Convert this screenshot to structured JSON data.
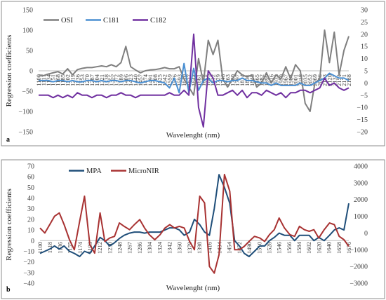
{
  "chart_data": [
    {
      "type": "line",
      "panel_label": "a",
      "xlabel": "Wavelenght (nm)",
      "ylabel": "Regression coefficients",
      "ylim_left": [
        -150,
        150
      ],
      "ylim_right": [
        -20,
        30
      ],
      "yticks_left": [
        "150",
        "100",
        "50",
        "0",
        "−50",
        "−100",
        "−150"
      ],
      "yticks_right": [
        "30",
        "25",
        "20",
        "15",
        "10",
        "5",
        "0",
        "−5",
        "−10",
        "−15",
        "−20"
      ],
      "xticks": [
        "1100",
        "1117",
        "1134",
        "1151",
        "1168",
        "1185",
        "1202",
        "1219",
        "1236",
        "1253",
        "1270",
        "1287",
        "1304",
        "1321",
        "1338",
        "1355",
        "1372",
        "1389",
        "1406",
        "1423",
        "1440",
        "1457",
        "1474",
        "1491",
        "1508",
        "1525",
        "1542",
        "1559",
        "1576",
        "1593",
        "1610",
        "1627",
        "1644",
        "1661",
        "1678",
        "1695",
        "1712",
        "1729",
        "1746",
        "1763",
        "1780",
        "1797",
        "1814",
        "1831",
        "1848",
        "1865",
        "1882",
        "1899",
        "1916",
        "1933",
        "1950",
        "1967",
        "1984",
        "2001",
        "2018",
        "2035",
        "2052",
        "2069",
        "2086",
        "2103",
        "2120",
        "2137",
        "2154",
        "2171",
        "2188"
      ],
      "legend_position": "top-left",
      "grid": false,
      "x": [
        1100,
        1117,
        1134,
        1151,
        1168,
        1185,
        1202,
        1219,
        1236,
        1253,
        1270,
        1287,
        1304,
        1321,
        1338,
        1355,
        1372,
        1389,
        1406,
        1423,
        1440,
        1457,
        1474,
        1491,
        1508,
        1525,
        1542,
        1559,
        1576,
        1593,
        1610,
        1627,
        1644,
        1661,
        1678,
        1695,
        1712,
        1729,
        1746,
        1763,
        1780,
        1797,
        1814,
        1831,
        1848,
        1865,
        1882,
        1899,
        1916,
        1933,
        1950,
        1967,
        1984,
        2001,
        2018,
        2035,
        2052,
        2069,
        2086,
        2103,
        2120,
        2137,
        2154,
        2171,
        2188
      ],
      "series": [
        {
          "name": "OSI",
          "axis": "left",
          "color": "#7f7f7f",
          "values": [
            -10,
            -12,
            -8,
            -5,
            -2,
            -8,
            5,
            -10,
            3,
            6,
            8,
            8,
            10,
            12,
            10,
            15,
            10,
            20,
            60,
            10,
            2,
            -5,
            0,
            2,
            3,
            5,
            8,
            5,
            5,
            10,
            -20,
            -40,
            -60,
            30,
            -30,
            75,
            40,
            75,
            -20,
            -40,
            -20,
            0,
            -10,
            -15,
            -10,
            -40,
            -30,
            -5,
            -30,
            -10,
            -20,
            10,
            -20,
            15,
            0,
            -80,
            -100,
            -30,
            -20,
            100,
            20,
            95,
            -10,
            50,
            85
          ]
        },
        {
          "name": "C181",
          "axis": "right",
          "color": "#4a8fd2",
          "values": [
            1,
            1,
            1,
            0.5,
            1,
            1,
            0.5,
            1,
            0.5,
            0.5,
            1,
            1,
            0.5,
            1,
            0.5,
            1,
            1,
            0.5,
            1,
            1,
            0.5,
            0,
            0.5,
            1,
            1,
            0.5,
            0,
            -2,
            2,
            -4,
            8,
            -4,
            6,
            -3,
            1,
            2,
            0,
            1,
            1,
            0.5,
            1,
            1,
            2,
            1,
            1,
            0.5,
            0,
            0,
            -1,
            0,
            -1,
            -1,
            -1,
            -1,
            0,
            -1,
            -1,
            0,
            1,
            2,
            4,
            3,
            2,
            2,
            1
          ]
        },
        {
          "name": "C182",
          "axis": "right",
          "color": "#7030a0",
          "values": [
            -5,
            -5,
            -5,
            -6,
            -5,
            -6,
            -5,
            -6,
            -4,
            -5,
            -5,
            -6,
            -5,
            -5,
            -6,
            -5,
            -5,
            -4,
            -5,
            -5,
            -6,
            -5,
            -5,
            -5,
            -5,
            -5,
            -5,
            -4,
            -5,
            -5,
            -3,
            -5,
            20,
            -10,
            -18,
            5,
            2,
            -5,
            -5,
            -4,
            -3,
            -5,
            -3,
            -6,
            -4,
            -4,
            -5,
            -3,
            -4,
            -5,
            -4,
            -6,
            -4,
            -4,
            -3,
            -3,
            -4,
            -3,
            -2,
            2,
            -1,
            0,
            -2,
            -3,
            -2
          ]
        }
      ]
    },
    {
      "type": "line",
      "panel_label": "b",
      "xlabel": "Wavelenght (nm)",
      "ylabel": "Regression coefficients",
      "ylim_left": [
        -40,
        70
      ],
      "ylim_right": [
        -3000,
        4000
      ],
      "yticks_left": [
        "70",
        "60",
        "50",
        "40",
        "30",
        "20",
        "10",
        "0",
        "−10",
        "−20",
        "−30",
        "−40"
      ],
      "yticks_right": [
        "4000",
        "3000",
        "2000",
        "1000",
        "0",
        "−1000",
        "−2000",
        "−3000"
      ],
      "xticks": [
        "1100",
        "1118",
        "1136",
        "1155",
        "1174",
        "1193",
        "1212",
        "1230",
        "1248",
        "1267",
        "1286",
        "1304",
        "1324",
        "1342",
        "1360",
        "1379",
        "1398",
        "1416",
        "1434",
        "1454",
        "1472",
        "1490",
        "1510",
        "1528",
        "1546",
        "1566",
        "1584",
        "1602",
        "1620",
        "1640",
        "1658",
        "1676"
      ],
      "legend_position": "top-left",
      "grid": false,
      "x": [
        1100,
        1109,
        1118,
        1127,
        1136,
        1145,
        1155,
        1164,
        1174,
        1183,
        1193,
        1202,
        1212,
        1221,
        1230,
        1239,
        1248,
        1257,
        1267,
        1276,
        1286,
        1295,
        1304,
        1314,
        1324,
        1333,
        1342,
        1351,
        1360,
        1369,
        1379,
        1388,
        1398,
        1407,
        1416,
        1425,
        1434,
        1444,
        1454,
        1463,
        1472,
        1481,
        1490,
        1500,
        1510,
        1519,
        1528,
        1537,
        1546,
        1556,
        1566,
        1575,
        1584,
        1593,
        1602,
        1611,
        1620,
        1630,
        1640,
        1649,
        1658,
        1667,
        1676
      ],
      "series": [
        {
          "name": "MPA",
          "axis": "left",
          "color": "#1f4e79",
          "values": [
            -12,
            -10,
            -8,
            -5,
            -8,
            -5,
            -10,
            -12,
            -15,
            -10,
            -12,
            -5,
            3,
            0,
            -5,
            -2,
            2,
            5,
            7,
            8,
            8,
            7,
            8,
            8,
            8,
            10,
            12,
            12,
            10,
            5,
            8,
            20,
            15,
            8,
            5,
            30,
            62,
            50,
            35,
            0,
            -5,
            -12,
            -15,
            -10,
            -5,
            -5,
            0,
            3,
            7,
            5,
            5,
            0,
            5,
            5,
            5,
            0,
            3,
            0,
            5,
            10,
            12,
            10,
            35
          ]
        },
        {
          "name": "MicroNIR",
          "axis": "right",
          "color": "#a83232",
          "values": [
            300,
            0,
            500,
            1000,
            1200,
            500,
            -400,
            -1000,
            700,
            2200,
            -700,
            -1200,
            1200,
            -500,
            -300,
            -200,
            600,
            400,
            200,
            500,
            800,
            300,
            -100,
            -400,
            -100,
            300,
            500,
            300,
            400,
            300,
            -500,
            -1000,
            2200,
            1800,
            -2000,
            -2400,
            -1300,
            3500,
            2500,
            -1000,
            -1000,
            -800,
            -500,
            -200,
            -300,
            -500,
            -100,
            200,
            900,
            300,
            -100,
            -200,
            400,
            200,
            100,
            200,
            -300,
            200,
            600,
            500,
            -200,
            -400,
            -800
          ]
        }
      ]
    }
  ]
}
